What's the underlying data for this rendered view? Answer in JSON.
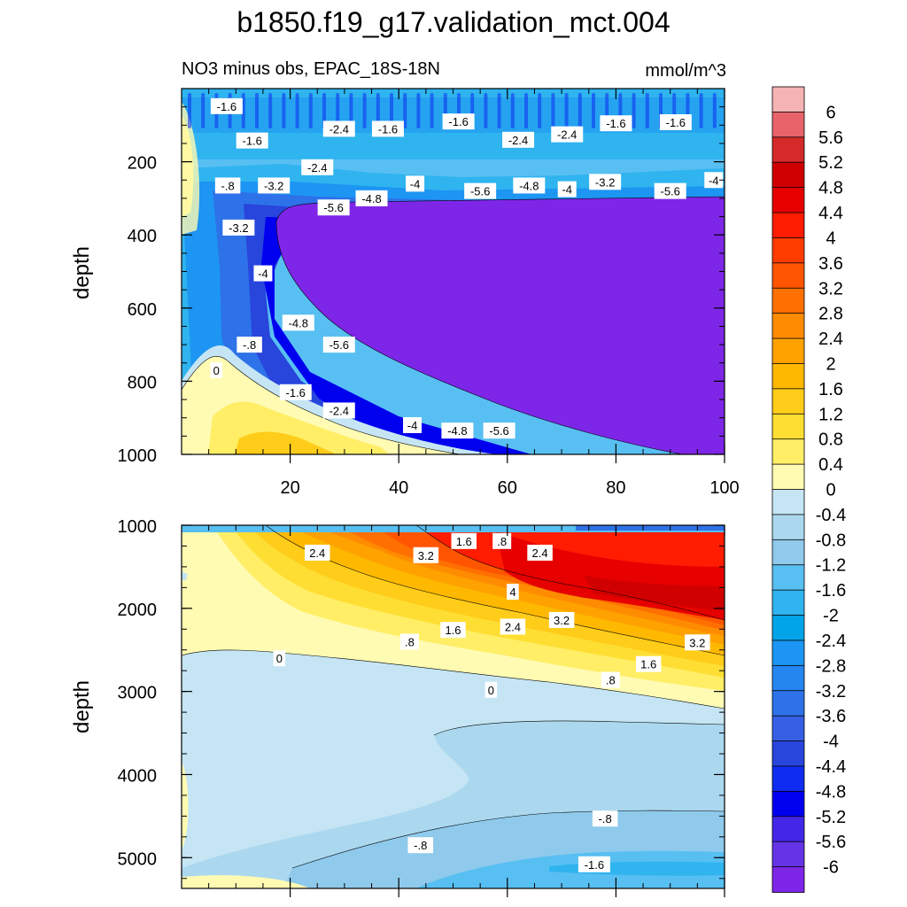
{
  "chart_data": {
    "type": "contour",
    "title": "b1850.f19_g17.validation_mct.004",
    "colorbar": {
      "units": "mmol/m^3",
      "levels": [
        "6",
        "5.6",
        "5.2",
        "4.8",
        "4.4",
        "4",
        "3.6",
        "3.2",
        "2.8",
        "2.4",
        "2",
        "1.6",
        "1.2",
        "0.8",
        "0.4",
        "0",
        "-0.4",
        "-0.8",
        "-1.2",
        "-1.6",
        "-2",
        "-2.4",
        "-2.8",
        "-3.2",
        "-3.6",
        "-4",
        "-4.4",
        "-4.8",
        "-5.2",
        "-5.6",
        "-6"
      ],
      "colors": [
        "#f5b3b3",
        "#e8646a",
        "#d42a2a",
        "#d10000",
        "#e60000",
        "#ff1c00",
        "#ff3c00",
        "#ff5500",
        "#ff7000",
        "#ff8c00",
        "#ffa200",
        "#ffb800",
        "#ffcc1a",
        "#ffde33",
        "#ffee66",
        "#fffbb3",
        "#c5e5f4",
        "#abd8ef",
        "#8fcaec",
        "#58bff2",
        "#2fb4ef",
        "#02a4e8",
        "#1d95f2",
        "#2586f0",
        "#2d72e8",
        "#375fe6",
        "#2845dc",
        "#0e2df0",
        "#0000ef",
        "#4327e8",
        "#6434e6",
        "#7e26e8"
      ]
    },
    "panels": [
      {
        "subtitle_left": "NO3 minus obs, EPAC_18S-18N",
        "subtitle_right": "mmol/m^3",
        "ylabel": "depth",
        "ylim": [
          0,
          1000
        ],
        "yticks": [
          "200",
          "400",
          "600",
          "800",
          "1000"
        ],
        "xlim": [
          0,
          100
        ],
        "xticks": [
          "20",
          "40",
          "60",
          "80",
          "100"
        ],
        "contour_labels": [
          {
            "text": "-1.6",
            "x": 8.3,
            "y": 48
          },
          {
            "text": "-1.6",
            "x": 13,
            "y": 142
          },
          {
            "text": "-2.4",
            "x": 29,
            "y": 110
          },
          {
            "text": "-1.6",
            "x": 38,
            "y": 110
          },
          {
            "text": "-1.6",
            "x": 51,
            "y": 90
          },
          {
            "text": "-2.4",
            "x": 62,
            "y": 140
          },
          {
            "text": "-2.4",
            "x": 71,
            "y": 125
          },
          {
            "text": "-1.6",
            "x": 80,
            "y": 95
          },
          {
            "text": "-1.6",
            "x": 91,
            "y": 92
          },
          {
            "text": "-.8",
            "x": 8.5,
            "y": 265
          },
          {
            "text": "-2.4",
            "x": 25,
            "y": 215
          },
          {
            "text": "-3.2",
            "x": 17,
            "y": 265
          },
          {
            "text": "-5.6",
            "x": 28,
            "y": 325
          },
          {
            "text": "-4.8",
            "x": 35,
            "y": 300
          },
          {
            "text": "-4",
            "x": 43,
            "y": 260
          },
          {
            "text": "-5.6",
            "x": 55,
            "y": 280
          },
          {
            "text": "-4.8",
            "x": 64,
            "y": 265
          },
          {
            "text": "-4",
            "x": 71,
            "y": 275
          },
          {
            "text": "-3.2",
            "x": 78,
            "y": 255
          },
          {
            "text": "-5.6",
            "x": 90,
            "y": 280
          },
          {
            "text": "-4",
            "x": 98,
            "y": 250
          },
          {
            "text": "-3.2",
            "x": 10.5,
            "y": 380
          },
          {
            "text": "-4",
            "x": 15,
            "y": 505
          },
          {
            "text": "-4.8",
            "x": 21.5,
            "y": 640
          },
          {
            "text": "-5.6",
            "x": 29,
            "y": 700
          },
          {
            "text": "-.8",
            "x": 12.5,
            "y": 700
          },
          {
            "text": "0",
            "x": 6.4,
            "y": 770
          },
          {
            "text": "-1.6",
            "x": 21,
            "y": 830
          },
          {
            "text": "-2.4",
            "x": 29,
            "y": 880
          },
          {
            "text": "-4",
            "x": 42.5,
            "y": 920
          },
          {
            "text": "-4.8",
            "x": 50.8,
            "y": 935
          },
          {
            "text": "-5.6",
            "x": 58.5,
            "y": 935
          }
        ]
      },
      {
        "ylabel": "depth",
        "ylim": [
          1000,
          5370
        ],
        "yticks": [
          "1000",
          "2000",
          "3000",
          "4000",
          "5000"
        ],
        "xlim": [
          0,
          100
        ],
        "contour_labels": [
          {
            "text": "2.4",
            "x": 25,
            "y": 1330
          },
          {
            "text": "1.6",
            "x": 52,
            "y": 1190
          },
          {
            "text": ".8",
            "x": 59,
            "y": 1190
          },
          {
            "text": "3.2",
            "x": 45,
            "y": 1360
          },
          {
            "text": "2.4",
            "x": 66,
            "y": 1330
          },
          {
            "text": "4",
            "x": 61,
            "y": 1800
          },
          {
            "text": "3.2",
            "x": 70,
            "y": 2140
          },
          {
            "text": "2.4",
            "x": 61,
            "y": 2220
          },
          {
            "text": "1.6",
            "x": 50,
            "y": 2260
          },
          {
            "text": ".8",
            "x": 42,
            "y": 2400
          },
          {
            "text": "3.2",
            "x": 95,
            "y": 2410
          },
          {
            "text": "1.6",
            "x": 86,
            "y": 2670
          },
          {
            "text": ".8",
            "x": 79,
            "y": 2860
          },
          {
            "text": "0",
            "x": 18,
            "y": 2600
          },
          {
            "text": "0",
            "x": 57,
            "y": 2980
          },
          {
            "text": "-.8",
            "x": 78,
            "y": 4530
          },
          {
            "text": "-.8",
            "x": 44,
            "y": 4850
          },
          {
            "text": "-1.6",
            "x": 76,
            "y": 5080
          }
        ]
      }
    ]
  }
}
